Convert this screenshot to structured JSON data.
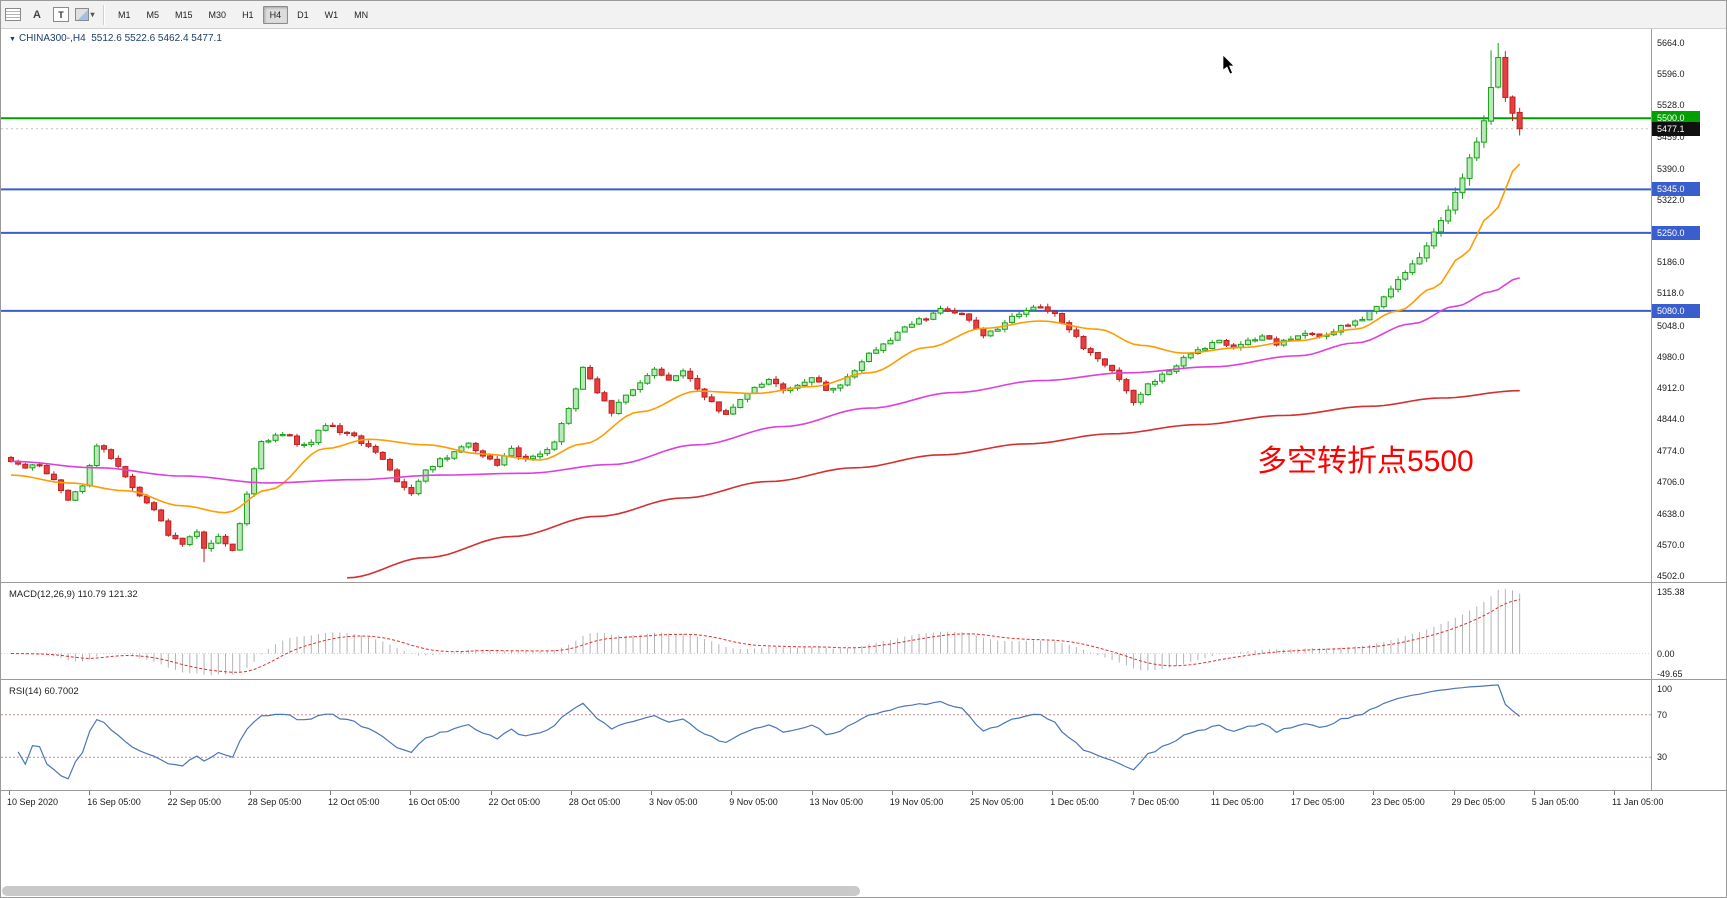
{
  "toolbar": {
    "icons": [
      {
        "name": "windows-grid-icon"
      },
      {
        "name": "text-label-icon",
        "glyph": "A"
      },
      {
        "name": "text-box-icon",
        "glyph": "T"
      },
      {
        "name": "style-palette-icon",
        "caret": "▾"
      }
    ],
    "timeframes": [
      "M1",
      "M5",
      "M15",
      "M30",
      "H1",
      "H4",
      "D1",
      "W1",
      "MN"
    ],
    "active_timeframe": "H4"
  },
  "chart": {
    "collapse_arrow": "▼",
    "title": "CHINA300-,H4",
    "ohlc_text": "5512.6 5522.6 5462.4 5477.1",
    "annotation_text": "多空转折点5500",
    "annotation_color": "#ff0000"
  },
  "price_scale": {
    "ticks": [
      "5664.0",
      "5596.0",
      "5528.0",
      "5459.0",
      "5390.0",
      "5322.0",
      "5254.0",
      "5186.0",
      "5118.0",
      "5048.0",
      "4980.0",
      "4912.0",
      "4844.0",
      "4774.0",
      "4706.0",
      "4638.0",
      "4570.0",
      "4502.0"
    ],
    "tags": [
      {
        "label": "5500.0",
        "price": 5500,
        "bg": "#00a000"
      },
      {
        "label": "5477.1",
        "price": 5477.1,
        "bg": "#101010"
      },
      {
        "label": "5345.0",
        "price": 5345,
        "bg": "#3a5fcd"
      },
      {
        "label": "5250.0",
        "price": 5250,
        "bg": "#3a5fcd"
      },
      {
        "label": "5080.0",
        "price": 5080,
        "bg": "#3a5fcd"
      }
    ]
  },
  "levels": [
    {
      "price": 5500,
      "color": "#00a000",
      "width": 2
    },
    {
      "price": 5345,
      "color": "#3a5fcd",
      "width": 2
    },
    {
      "price": 5250,
      "color": "#3a5fcd",
      "width": 2
    },
    {
      "price": 5080,
      "color": "#3a5fcd",
      "width": 2
    }
  ],
  "time_axis": {
    "labels": [
      "10 Sep 2020",
      "16 Sep 05:00",
      "22 Sep 05:00",
      "28 Sep 05:00",
      "12 Oct 05:00",
      "16 Oct 05:00",
      "22 Oct 05:00",
      "28 Oct 05:00",
      "3 Nov 05:00",
      "9 Nov 05:00",
      "13 Nov 05:00",
      "19 Nov 05:00",
      "25 Nov 05:00",
      "1 Dec 05:00",
      "7 Dec 05:00",
      "11 Dec 05:00",
      "17 Dec 05:00",
      "23 Dec 05:00",
      "29 Dec 05:00",
      "5 Jan 05:00",
      "11 Jan 05:00"
    ]
  },
  "chart_data": {
    "type": "candlestick",
    "symbol": "CHINA300-",
    "timeframe": "H4",
    "candle_count": 212,
    "last_candle": {
      "open": 5512.6,
      "high": 5522.6,
      "low": 5462.4,
      "close": 5477.1
    },
    "peak_high": 5664.0,
    "price_axis_range": [
      4502,
      5664
    ],
    "up_color": "#18a018",
    "up_fill": "#b9e8b9",
    "down_color": "#c02020",
    "down_fill": "#e44040",
    "close_waypoints": [
      [
        0,
        4755
      ],
      [
        2,
        4735
      ],
      [
        4,
        4745
      ],
      [
        6,
        4710
      ],
      [
        8,
        4668
      ],
      [
        10,
        4700
      ],
      [
        12,
        4788
      ],
      [
        14,
        4760
      ],
      [
        16,
        4718
      ],
      [
        18,
        4680
      ],
      [
        20,
        4645
      ],
      [
        22,
        4595
      ],
      [
        24,
        4570
      ],
      [
        26,
        4600
      ],
      [
        27,
        4560
      ],
      [
        29,
        4585
      ],
      [
        31,
        4560
      ],
      [
        33,
        4680
      ],
      [
        35,
        4795
      ],
      [
        38,
        4812
      ],
      [
        41,
        4785
      ],
      [
        44,
        4830
      ],
      [
        47,
        4815
      ],
      [
        50,
        4788
      ],
      [
        52,
        4758
      ],
      [
        54,
        4710
      ],
      [
        56,
        4685
      ],
      [
        58,
        4733
      ],
      [
        61,
        4762
      ],
      [
        64,
        4790
      ],
      [
        66,
        4765
      ],
      [
        68,
        4745
      ],
      [
        70,
        4778
      ],
      [
        72,
        4755
      ],
      [
        74,
        4768
      ],
      [
        76,
        4790
      ],
      [
        78,
        4870
      ],
      [
        80,
        4955
      ],
      [
        82,
        4905
      ],
      [
        84,
        4855
      ],
      [
        86,
        4898
      ],
      [
        88,
        4925
      ],
      [
        90,
        4950
      ],
      [
        92,
        4928
      ],
      [
        94,
        4946
      ],
      [
        96,
        4912
      ],
      [
        98,
        4878
      ],
      [
        100,
        4852
      ],
      [
        102,
        4888
      ],
      [
        104,
        4915
      ],
      [
        106,
        4930
      ],
      [
        108,
        4905
      ],
      [
        110,
        4918
      ],
      [
        112,
        4938
      ],
      [
        114,
        4905
      ],
      [
        116,
        4922
      ],
      [
        118,
        4952
      ],
      [
        120,
        4985
      ],
      [
        122,
        5008
      ],
      [
        124,
        5032
      ],
      [
        126,
        5052
      ],
      [
        128,
        5065
      ],
      [
        130,
        5088
      ],
      [
        132,
        5078
      ],
      [
        134,
        5062
      ],
      [
        136,
        5028
      ],
      [
        138,
        5042
      ],
      [
        140,
        5068
      ],
      [
        142,
        5085
      ],
      [
        144,
        5092
      ],
      [
        146,
        5072
      ],
      [
        148,
        5038
      ],
      [
        150,
        5002
      ],
      [
        152,
        4972
      ],
      [
        154,
        4948
      ],
      [
        156,
        4908
      ],
      [
        157,
        4882
      ],
      [
        159,
        4918
      ],
      [
        161,
        4942
      ],
      [
        163,
        4962
      ],
      [
        165,
        4988
      ],
      [
        167,
        5002
      ],
      [
        169,
        5012
      ],
      [
        171,
        4998
      ],
      [
        173,
        5012
      ],
      [
        175,
        5022
      ],
      [
        177,
        5008
      ],
      [
        179,
        5022
      ],
      [
        181,
        5032
      ],
      [
        183,
        5022
      ],
      [
        185,
        5038
      ],
      [
        187,
        5052
      ],
      [
        189,
        5062
      ],
      [
        191,
        5088
      ],
      [
        193,
        5132
      ],
      [
        195,
        5162
      ],
      [
        197,
        5198
      ],
      [
        199,
        5252
      ],
      [
        201,
        5302
      ],
      [
        203,
        5368
      ],
      [
        205,
        5452
      ],
      [
        206,
        5498
      ],
      [
        207,
        5568
      ],
      [
        208,
        5632
      ],
      [
        209,
        5548
      ],
      [
        210,
        5512
      ],
      [
        211,
        5477.1
      ]
    ],
    "moving_averages": [
      {
        "name": "ma-fast",
        "color": "#ff9c00",
        "points": [
          [
            0,
            4722
          ],
          [
            8,
            4705
          ],
          [
            16,
            4688
          ],
          [
            24,
            4655
          ],
          [
            30,
            4640
          ],
          [
            36,
            4690
          ],
          [
            44,
            4780
          ],
          [
            50,
            4800
          ],
          [
            58,
            4788
          ],
          [
            66,
            4768
          ],
          [
            74,
            4755
          ],
          [
            80,
            4790
          ],
          [
            88,
            4860
          ],
          [
            96,
            4905
          ],
          [
            104,
            4900
          ],
          [
            112,
            4915
          ],
          [
            120,
            4945
          ],
          [
            128,
            5000
          ],
          [
            136,
            5042
          ],
          [
            144,
            5058
          ],
          [
            152,
            5040
          ],
          [
            158,
            5005
          ],
          [
            164,
            4988
          ],
          [
            172,
            5000
          ],
          [
            180,
            5015
          ],
          [
            188,
            5040
          ],
          [
            194,
            5080
          ],
          [
            199,
            5130
          ],
          [
            203,
            5200
          ],
          [
            207,
            5290
          ],
          [
            211,
            5400
          ]
        ]
      },
      {
        "name": "ma-mid",
        "color": "#dd40dd",
        "points": [
          [
            0,
            4752
          ],
          [
            12,
            4738
          ],
          [
            24,
            4720
          ],
          [
            36,
            4705
          ],
          [
            48,
            4712
          ],
          [
            60,
            4722
          ],
          [
            72,
            4726
          ],
          [
            84,
            4745
          ],
          [
            96,
            4788
          ],
          [
            108,
            4828
          ],
          [
            120,
            4868
          ],
          [
            132,
            4902
          ],
          [
            144,
            4928
          ],
          [
            156,
            4945
          ],
          [
            168,
            4958
          ],
          [
            180,
            4982
          ],
          [
            188,
            5010
          ],
          [
            196,
            5052
          ],
          [
            202,
            5090
          ],
          [
            207,
            5122
          ],
          [
            211,
            5152
          ]
        ]
      },
      {
        "name": "ma-slow",
        "color": "#d43030",
        "points": [
          [
            47,
            4498
          ],
          [
            58,
            4542
          ],
          [
            70,
            4588
          ],
          [
            82,
            4632
          ],
          [
            94,
            4672
          ],
          [
            106,
            4708
          ],
          [
            118,
            4738
          ],
          [
            130,
            4766
          ],
          [
            142,
            4790
          ],
          [
            154,
            4812
          ],
          [
            166,
            4832
          ],
          [
            178,
            4852
          ],
          [
            190,
            4872
          ],
          [
            200,
            4890
          ],
          [
            211,
            4906
          ]
        ]
      }
    ]
  },
  "indicators": {
    "macd": {
      "label": "MACD(12,26,9) 110.79 121.32",
      "fast": 12,
      "slow": 26,
      "signal": 9,
      "main_value": "110.79",
      "signal_value": "121.32",
      "axis_max": "135.38",
      "axis_zero": "0.00",
      "axis_min": "-49.65",
      "histogram_color": "#b4b4b4",
      "signal_color": "#e03030"
    },
    "rsi": {
      "label": "RSI(14) 60.7002",
      "period": 14,
      "value": "60.7002",
      "axis_top": "100",
      "level_labels": [
        "70",
        "30"
      ],
      "levels": [
        70,
        30
      ],
      "line_color": "#4a76b8"
    }
  },
  "scrollbar": {
    "thumb_width": 858
  }
}
